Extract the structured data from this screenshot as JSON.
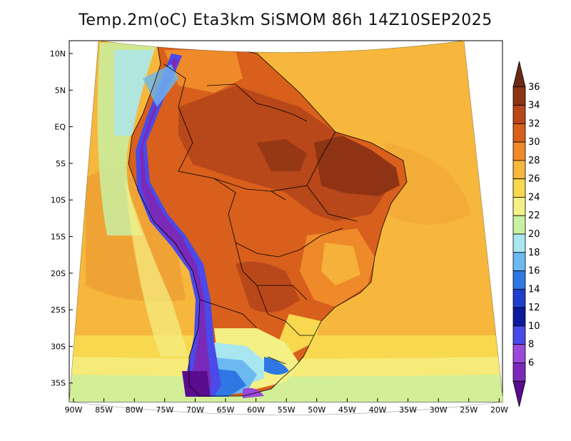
{
  "title": "Temp.2m(oC) Eta3km SiSMOM 86h 14Z10SEP2025",
  "lat_labels": [
    "10N",
    "5N",
    "EQ",
    "5S",
    "10S",
    "15S",
    "20S",
    "25S",
    "30S",
    "35S"
  ],
  "lon_labels": [
    "90W",
    "85W",
    "80W",
    "75W",
    "70W",
    "65W",
    "60W",
    "55W",
    "50W",
    "45W",
    "40W",
    "35W",
    "30W",
    "25W",
    "20W"
  ],
  "colorbar": {
    "labels": [
      "36",
      "34",
      "32",
      "30",
      "28",
      "26",
      "24",
      "22",
      "20",
      "18",
      "16",
      "14",
      "12",
      "10",
      "8",
      "6"
    ],
    "colors": [
      "#6b2a14",
      "#8e3414",
      "#b8471a",
      "#d85f1c",
      "#ee8a2a",
      "#f6b73c",
      "#f7d84e",
      "#f5f085",
      "#c9f0a0",
      "#a8e6f0",
      "#6cb9f2",
      "#2f78e4",
      "#1f3fcc",
      "#0d1a9c",
      "#4a4ae8",
      "#9a4ad8",
      "#7a2ab8",
      "#5a0c8e"
    ]
  }
}
